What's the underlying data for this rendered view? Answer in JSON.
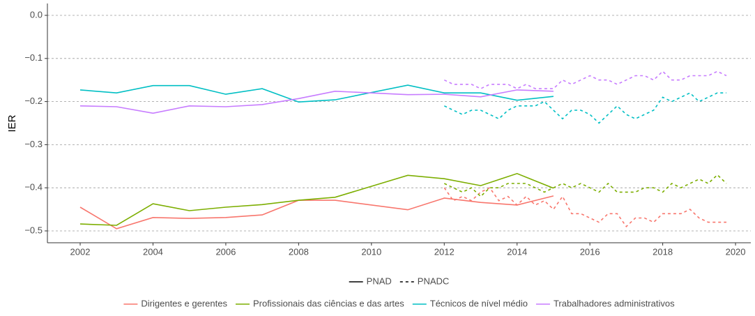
{
  "chart_data": {
    "type": "line",
    "ylabel": "IER",
    "xlim": [
      2001.1,
      2020.42
    ],
    "ylim": [
      -0.5275,
      0.0275
    ],
    "xticks": [
      2002,
      2004,
      2006,
      2008,
      2010,
      2012,
      2014,
      2016,
      2018,
      2020
    ],
    "yticks": [
      {
        "value": 0,
        "label": "0.0"
      },
      {
        "value": -0.1,
        "label": "−0.1"
      },
      {
        "value": -0.2,
        "label": "−0.2"
      },
      {
        "value": -0.3,
        "label": "−0.3"
      },
      {
        "value": -0.4,
        "label": "−0.4"
      },
      {
        "value": -0.5,
        "label": "−0.5"
      }
    ],
    "grid": true,
    "linetypes": [
      {
        "name": "PNAD",
        "dash": "solid"
      },
      {
        "name": "PNADC",
        "dash": "dashed"
      }
    ],
    "series": [
      {
        "name": "Dirigentes e gerentes",
        "color": "#F8766D",
        "lines": [
          {
            "x": [
              2002,
              2003,
              2004,
              2005,
              2006,
              2007,
              2008,
              2009,
              2011,
              2012,
              2013,
              2014,
              2015
            ],
            "values": [
              -0.445,
              -0.495,
              -0.469,
              -0.471,
              -0.469,
              -0.463,
              -0.429,
              -0.429,
              -0.451,
              -0.424,
              -0.434,
              -0.44,
              -0.419
            ]
          },
          {
            "x": [
              2012,
              2012.25,
              2012.5,
              2012.75,
              2013,
              2013.25,
              2013.5,
              2013.75,
              2014,
              2014.25,
              2014.5,
              2014.75,
              2015,
              2015.25,
              2015.5,
              2015.75,
              2016,
              2016.25,
              2016.5,
              2016.75,
              2017,
              2017.25,
              2017.5,
              2017.75,
              2018,
              2018.25,
              2018.5,
              2018.75,
              2019,
              2019.25,
              2019.5,
              2019.75
            ],
            "values": [
              -0.4,
              -0.43,
              -0.42,
              -0.43,
              -0.41,
              -0.4,
              -0.43,
              -0.42,
              -0.44,
              -0.42,
              -0.44,
              -0.43,
              -0.45,
              -0.42,
              -0.46,
              -0.46,
              -0.47,
              -0.48,
              -0.46,
              -0.46,
              -0.49,
              -0.47,
              -0.47,
              -0.48,
              -0.46,
              -0.46,
              -0.46,
              -0.45,
              -0.47,
              -0.48,
              -0.48,
              -0.48
            ]
          }
        ]
      },
      {
        "name": "Profissionais das ciências e das artes",
        "color": "#7CAE00",
        "lines": [
          {
            "x": [
              2002,
              2003,
              2004,
              2005,
              2006,
              2007,
              2008,
              2009,
              2011,
              2012,
              2013,
              2014,
              2015
            ],
            "values": [
              -0.484,
              -0.487,
              -0.437,
              -0.453,
              -0.445,
              -0.439,
              -0.429,
              -0.422,
              -0.371,
              -0.379,
              -0.395,
              -0.367,
              -0.401
            ]
          },
          {
            "x": [
              2012,
              2012.25,
              2012.5,
              2012.75,
              2013,
              2013.25,
              2013.5,
              2013.75,
              2014,
              2014.25,
              2014.5,
              2014.75,
              2015,
              2015.25,
              2015.5,
              2015.75,
              2016,
              2016.25,
              2016.5,
              2016.75,
              2017,
              2017.25,
              2017.5,
              2017.75,
              2018,
              2018.25,
              2018.5,
              2018.75,
              2019,
              2019.25,
              2019.5,
              2019.75
            ],
            "values": [
              -0.39,
              -0.4,
              -0.41,
              -0.4,
              -0.42,
              -0.4,
              -0.4,
              -0.39,
              -0.39,
              -0.39,
              -0.4,
              -0.41,
              -0.4,
              -0.39,
              -0.4,
              -0.39,
              -0.4,
              -0.41,
              -0.39,
              -0.41,
              -0.41,
              -0.41,
              -0.4,
              -0.4,
              -0.41,
              -0.39,
              -0.4,
              -0.39,
              -0.38,
              -0.39,
              -0.37,
              -0.39
            ]
          }
        ]
      },
      {
        "name": "Técnicos de nível médio",
        "color": "#00BFC4",
        "lines": [
          {
            "x": [
              2002,
              2003,
              2004,
              2005,
              2006,
              2007,
              2008,
              2009,
              2011,
              2012,
              2013,
              2014,
              2015
            ],
            "values": [
              -0.173,
              -0.18,
              -0.163,
              -0.163,
              -0.183,
              -0.17,
              -0.201,
              -0.196,
              -0.162,
              -0.18,
              -0.18,
              -0.197,
              -0.188
            ]
          },
          {
            "x": [
              2012,
              2012.25,
              2012.5,
              2012.75,
              2013,
              2013.25,
              2013.5,
              2013.75,
              2014,
              2014.25,
              2014.5,
              2014.75,
              2015,
              2015.25,
              2015.5,
              2015.75,
              2016,
              2016.25,
              2016.5,
              2016.75,
              2017,
              2017.25,
              2017.5,
              2017.75,
              2018,
              2018.25,
              2018.5,
              2018.75,
              2019,
              2019.25,
              2019.5,
              2019.75
            ],
            "values": [
              -0.21,
              -0.22,
              -0.23,
              -0.22,
              -0.22,
              -0.23,
              -0.24,
              -0.22,
              -0.21,
              -0.21,
              -0.21,
              -0.2,
              -0.22,
              -0.24,
              -0.22,
              -0.22,
              -0.23,
              -0.25,
              -0.23,
              -0.21,
              -0.23,
              -0.24,
              -0.23,
              -0.22,
              -0.19,
              -0.2,
              -0.19,
              -0.18,
              -0.2,
              -0.19,
              -0.18,
              -0.18
            ]
          }
        ]
      },
      {
        "name": "Trabalhadores administrativos",
        "color": "#C77CFF",
        "lines": [
          {
            "x": [
              2002,
              2003,
              2004,
              2005,
              2006,
              2007,
              2008,
              2009,
              2011,
              2012,
              2013,
              2014,
              2015
            ],
            "values": [
              -0.21,
              -0.212,
              -0.227,
              -0.21,
              -0.212,
              -0.207,
              -0.193,
              -0.176,
              -0.184,
              -0.183,
              -0.189,
              -0.173,
              -0.176
            ]
          },
          {
            "x": [
              2012,
              2012.25,
              2012.5,
              2012.75,
              2013,
              2013.25,
              2013.5,
              2013.75,
              2014,
              2014.25,
              2014.5,
              2014.75,
              2015,
              2015.25,
              2015.5,
              2015.75,
              2016,
              2016.25,
              2016.5,
              2016.75,
              2017,
              2017.25,
              2017.5,
              2017.75,
              2018,
              2018.25,
              2018.5,
              2018.75,
              2019,
              2019.25,
              2019.5,
              2019.75
            ],
            "values": [
              -0.15,
              -0.16,
              -0.16,
              -0.16,
              -0.17,
              -0.16,
              -0.16,
              -0.16,
              -0.17,
              -0.16,
              -0.17,
              -0.17,
              -0.17,
              -0.15,
              -0.16,
              -0.15,
              -0.14,
              -0.15,
              -0.15,
              -0.16,
              -0.15,
              -0.14,
              -0.14,
              -0.15,
              -0.13,
              -0.15,
              -0.15,
              -0.14,
              -0.14,
              -0.14,
              -0.13,
              -0.14
            ]
          }
        ]
      }
    ]
  }
}
